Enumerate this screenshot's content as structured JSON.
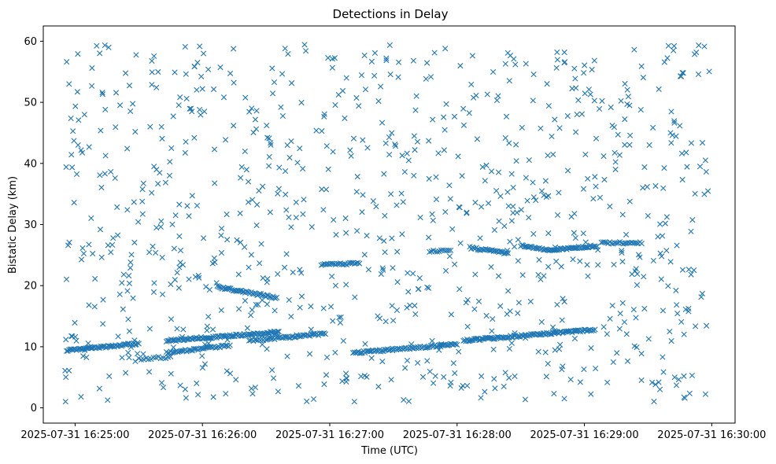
{
  "chart_data": {
    "type": "scatter",
    "title": "Detections in Delay",
    "xlabel": "Time (UTC)",
    "ylabel": "Bistatic Delay (km)",
    "marker": "x",
    "color": "#1f77b4",
    "grid": false,
    "xlim": [
      "2025-07-31 16:24:45",
      "2025-07-31 16:30:11"
    ],
    "ylim": [
      -2.5,
      62.5
    ],
    "xticks": [
      "2025-07-31 16:25:00",
      "2025-07-31 16:26:00",
      "2025-07-31 16:27:00",
      "2025-07-31 16:28:00",
      "2025-07-31 16:29:00",
      "2025-07-31 16:30:00"
    ],
    "yticks": [
      "0",
      "10",
      "20",
      "30",
      "40",
      "50",
      "60"
    ],
    "yticks_values": [
      0,
      10,
      20,
      30,
      40,
      50,
      60
    ],
    "noise_time_range": [
      "2025-07-31 16:24:55",
      "2025-07-31 16:29:59"
    ],
    "noise_delay_range": [
      1,
      59.5
    ],
    "noise_point_count": 900,
    "tracks": [
      {
        "start": [
          "2025-07-31 16:24:56",
          9.4
        ],
        "end": [
          "2025-07-31 16:25:30",
          10.5
        ],
        "points": 60
      },
      {
        "start": [
          "2025-07-31 16:25:30",
          8.0
        ],
        "end": [
          "2025-07-31 16:25:45",
          8.3
        ],
        "points": 14
      },
      {
        "start": [
          "2025-07-31 16:25:43",
          11.0
        ],
        "end": [
          "2025-07-31 16:26:36",
          12.4
        ],
        "points": 95
      },
      {
        "start": [
          "2025-07-31 16:25:43",
          9.0
        ],
        "end": [
          "2025-07-31 16:26:13",
          10.2
        ],
        "points": 45
      },
      {
        "start": [
          "2025-07-31 16:26:07",
          19.8
        ],
        "end": [
          "2025-07-31 16:26:35",
          18.0
        ],
        "points": 50
      },
      {
        "start": [
          "2025-07-31 16:26:22",
          11.0
        ],
        "end": [
          "2025-07-31 16:26:58",
          12.1
        ],
        "points": 55
      },
      {
        "start": [
          "2025-07-31 16:26:56",
          23.4
        ],
        "end": [
          "2025-07-31 16:27:14",
          23.7
        ],
        "points": 25
      },
      {
        "start": [
          "2025-07-31 16:27:11",
          9.0
        ],
        "end": [
          "2025-07-31 16:28:00",
          10.4
        ],
        "points": 80
      },
      {
        "start": [
          "2025-07-31 16:27:47",
          25.6
        ],
        "end": [
          "2025-07-31 16:27:57",
          25.8
        ],
        "points": 12
      },
      {
        "start": [
          "2025-07-31 16:28:06",
          26.2
        ],
        "end": [
          "2025-07-31 16:28:24",
          25.3
        ],
        "points": 30
      },
      {
        "start": [
          "2025-07-31 16:28:03",
          11.0
        ],
        "end": [
          "2025-07-31 16:29:05",
          12.8
        ],
        "points": 110
      },
      {
        "start": [
          "2025-07-31 16:28:30",
          26.5
        ],
        "end": [
          "2025-07-31 16:28:46",
          25.8
        ],
        "points": 28
      },
      {
        "start": [
          "2025-07-31 16:28:46",
          25.9
        ],
        "end": [
          "2025-07-31 16:29:06",
          26.5
        ],
        "points": 40
      },
      {
        "start": [
          "2025-07-31 16:29:08",
          27.0
        ],
        "end": [
          "2025-07-31 16:29:27",
          27.0
        ],
        "points": 25
      }
    ]
  }
}
